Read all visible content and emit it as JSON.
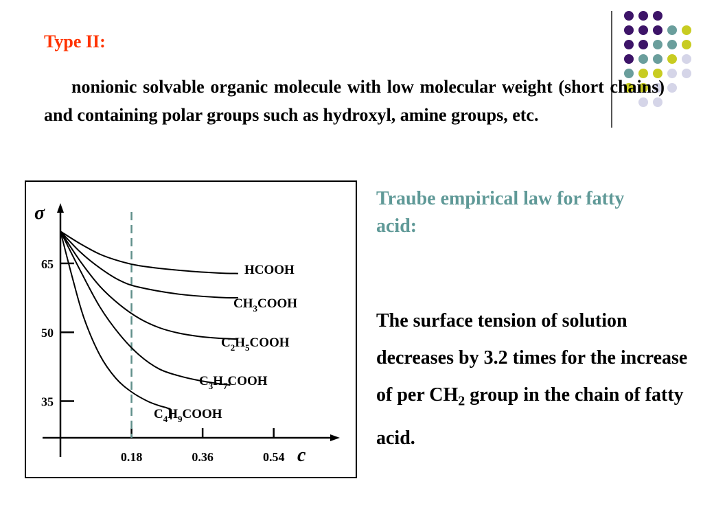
{
  "slide": {
    "title": "Type II:",
    "paragraph": "nonionic solvable organic molecule with low molecular weight (short chains) and containing polar groups such as hydroxyl, amine groups, etc.",
    "right_heading": "Traube empirical law for fatty acid:",
    "right_body_before": "The surface tension of solution decreases by 3.2 times for the increase of per CH",
    "right_body_sub": "2",
    "right_body_after": " group in the chain of fatty acid."
  },
  "colors": {
    "title": "#ff3300",
    "heading": "#5f9997",
    "dot_purple": "#3d1468",
    "dot_teal": "#6a9e9c",
    "dot_yellow": "#c8cc21",
    "dot_lavender": "#d5d5e8"
  },
  "decoration": {
    "dot_grid": [
      [
        "purple",
        "purple",
        "purple",
        "none",
        "none"
      ],
      [
        "purple",
        "purple",
        "purple",
        "teal",
        "yellow"
      ],
      [
        "purple",
        "purple",
        "teal",
        "teal",
        "yellow"
      ],
      [
        "purple",
        "teal",
        "teal",
        "yellow",
        "lavender"
      ],
      [
        "teal",
        "yellow",
        "yellow",
        "lavender",
        "lavender"
      ],
      [
        "yellow",
        "yellow",
        "lavender",
        "lavender",
        "none"
      ],
      [
        "none",
        "lavender",
        "lavender",
        "none",
        "none"
      ]
    ]
  },
  "chart_data": {
    "type": "line",
    "ylabel": "σ",
    "xlabel": "c",
    "xlim": [
      0,
      0.65
    ],
    "ylim": [
      27,
      75
    ],
    "x_ticks": [
      0.18,
      0.36,
      0.54
    ],
    "x_tick_labels": [
      "0.18",
      "0.36",
      "0.54"
    ],
    "y_ticks": [
      35,
      50,
      65
    ],
    "y_tick_labels": [
      "35",
      "50",
      "65"
    ],
    "reference_line_x": 0.18,
    "series": [
      {
        "name": "HCOOH",
        "label_parts": [
          [
            "HCOOH",
            ""
          ]
        ],
        "x": [
          0,
          0.05,
          0.1,
          0.15,
          0.2,
          0.3,
          0.4,
          0.45
        ],
        "y": [
          72,
          69.3,
          67,
          65.5,
          64.5,
          63.5,
          62.9,
          62.8
        ]
      },
      {
        "name": "CH3COOH",
        "label_parts": [
          [
            "CH",
            ""
          ],
          [
            "3",
            "sub"
          ],
          [
            "COOH",
            ""
          ]
        ],
        "x": [
          0,
          0.05,
          0.1,
          0.15,
          0.2,
          0.3,
          0.4,
          0.45
        ],
        "y": [
          72,
          67.5,
          64,
          61.3,
          59.8,
          58.3,
          57.6,
          57.5
        ]
      },
      {
        "name": "C2H5COOH",
        "label_parts": [
          [
            "C",
            ""
          ],
          [
            "2",
            "sub"
          ],
          [
            "H",
            ""
          ],
          [
            "5",
            "sub"
          ],
          [
            "COOH",
            ""
          ]
        ],
        "x": [
          0,
          0.05,
          0.1,
          0.15,
          0.2,
          0.25,
          0.3,
          0.35,
          0.4,
          0.45
        ],
        "y": [
          72,
          65.5,
          60,
          56,
          53,
          51,
          49.8,
          49.1,
          48.7,
          48.5
        ]
      },
      {
        "name": "C3H7COOH",
        "label_parts": [
          [
            "C",
            ""
          ],
          [
            "3",
            "sub"
          ],
          [
            "H",
            ""
          ],
          [
            "7",
            "sub"
          ],
          [
            "COOH",
            ""
          ]
        ],
        "x": [
          0,
          0.05,
          0.1,
          0.15,
          0.2,
          0.25,
          0.3,
          0.35,
          0.4,
          0.43
        ],
        "y": [
          72,
          63.5,
          55.5,
          49.5,
          45,
          42,
          40.5,
          39.5,
          38.8,
          38.5
        ]
      },
      {
        "name": "C4H9COOH",
        "label_parts": [
          [
            "C",
            ""
          ],
          [
            "4",
            "sub"
          ],
          [
            "H",
            ""
          ],
          [
            "9",
            "sub"
          ],
          [
            "COOH",
            ""
          ]
        ],
        "x": [
          0,
          0.03,
          0.06,
          0.1,
          0.14,
          0.18,
          0.22,
          0.25,
          0.27,
          0.28,
          0.28
        ],
        "y": [
          72,
          62,
          53,
          45,
          40,
          37,
          35,
          34,
          33.5,
          33,
          31
        ]
      }
    ]
  }
}
